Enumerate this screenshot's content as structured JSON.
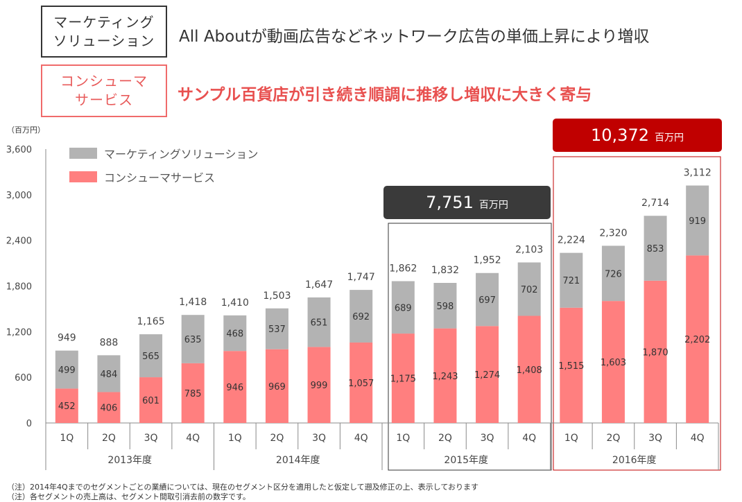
{
  "header": {
    "marketing_box": [
      "マーケティング",
      "ソリューション"
    ],
    "marketing_headline": "All Aboutが動画広告などネットワーク広告の単価上昇により増収",
    "consumer_box": [
      "コンシューマ",
      "サービス"
    ],
    "consumer_headline": "サンプル百貨店が引き続き順調に推移し増収に大きく寄与"
  },
  "totals": {
    "y2015": {
      "value": "7,751",
      "unit": "百万円"
    },
    "y2016": {
      "value": "10,372",
      "unit": "百万円"
    }
  },
  "colors": {
    "marketing": "#b3b3b3",
    "consumer": "#ff7f7f",
    "box2015": "#3a3a3a",
    "box2016": "#c00000"
  },
  "notes": [
    "（注）2014年4Qまでのセグメントごとの業績については、現在のセグメント区分を適用したと仮定して遡及修正の上、表示しております",
    "（注）各セグメントの売上高は、セグメント間取引消去前の数字です。"
  ],
  "chart_data": {
    "type": "bar",
    "stacked": true,
    "unit_label": "（百万円）",
    "ylim": [
      0,
      3600
    ],
    "yticks": [
      "0",
      "600",
      "1,200",
      "1,800",
      "2,400",
      "3,000",
      "3,600"
    ],
    "ytick_values": [
      0,
      600,
      1200,
      1800,
      2400,
      3000,
      3600
    ],
    "categories": [
      "1Q",
      "2Q",
      "3Q",
      "4Q",
      "1Q",
      "2Q",
      "3Q",
      "4Q",
      "1Q",
      "2Q",
      "3Q",
      "4Q",
      "1Q",
      "2Q",
      "3Q",
      "4Q"
    ],
    "year_groups": [
      "2013年度",
      "2014年度",
      "2015年度",
      "2016年度"
    ],
    "legend": [
      "マーケティングソリューション",
      "コンシューマサービス"
    ],
    "series": [
      {
        "name": "コンシューマサービス",
        "values": [
          452,
          406,
          601,
          785,
          946,
          969,
          999,
          1057,
          1175,
          1243,
          1274,
          1408,
          1515,
          1603,
          1870,
          2202
        ],
        "labels": [
          "452",
          "406",
          "601",
          "785",
          "946",
          "969",
          "999",
          "1,057",
          "1,175",
          "1,243",
          "1,274",
          "1,408",
          "1,515",
          "1,603",
          "1,870",
          "2,202"
        ]
      },
      {
        "name": "マーケティングソリューション",
        "values": [
          499,
          484,
          565,
          635,
          468,
          537,
          651,
          692,
          689,
          598,
          697,
          702,
          721,
          726,
          853,
          919
        ],
        "labels": [
          "499",
          "484",
          "565",
          "635",
          "468",
          "537",
          "651",
          "692",
          "689",
          "598",
          "697",
          "702",
          "721",
          "726",
          "853",
          "919"
        ]
      }
    ],
    "totals": [
      949,
      888,
      1165,
      1418,
      1410,
      1503,
      1647,
      1747,
      1862,
      1832,
      1952,
      2103,
      2224,
      2320,
      2714,
      3112
    ],
    "total_labels": [
      "949",
      "888",
      "1,165",
      "1,418",
      "1,410",
      "1,503",
      "1,647",
      "1,747",
      "1,862",
      "1,832",
      "1,952",
      "2,103",
      "2,224",
      "2,320",
      "2,714",
      "3,112"
    ]
  }
}
